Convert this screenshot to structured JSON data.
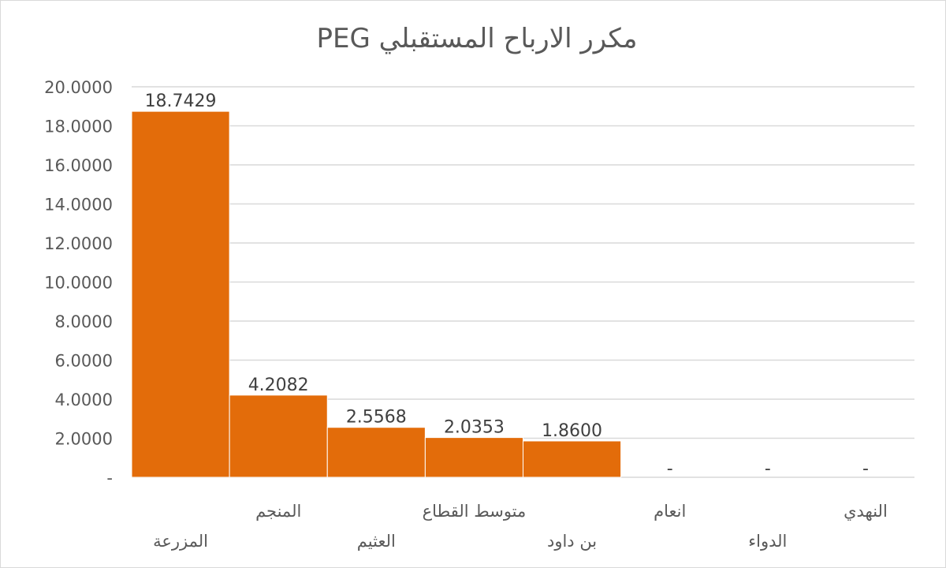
{
  "chart_data": {
    "type": "bar",
    "title": "PEG مكرر الارباح المستقبلي",
    "xlabel": "",
    "ylabel": "",
    "categories": [
      "المزرعة",
      "المنجم",
      "العثيم",
      "متوسط القطاع",
      "بن داود",
      "انعام",
      "الدواء",
      "النهدي"
    ],
    "values": [
      18.7429,
      4.2082,
      2.5568,
      2.0353,
      1.86,
      0,
      0,
      0
    ],
    "data_labels": [
      "18.7429",
      "4.2082",
      "2.5568",
      "2.0353",
      "1.8600",
      "-",
      "-",
      "-"
    ],
    "ylim": [
      0,
      20
    ],
    "y_ticks": [
      {
        "value": 0,
        "label": "-"
      },
      {
        "value": 2,
        "label": "2.0000"
      },
      {
        "value": 4,
        "label": "4.0000"
      },
      {
        "value": 6,
        "label": "6.0000"
      },
      {
        "value": 8,
        "label": "8.0000"
      },
      {
        "value": 10,
        "label": "10.0000"
      },
      {
        "value": 12,
        "label": "12.0000"
      },
      {
        "value": 14,
        "label": "14.0000"
      },
      {
        "value": 16,
        "label": "16.0000"
      },
      {
        "value": 18,
        "label": "18.0000"
      },
      {
        "value": 20,
        "label": "20.0000"
      }
    ],
    "grid": true,
    "legend": "none",
    "bar_color": "#E36C0A"
  }
}
